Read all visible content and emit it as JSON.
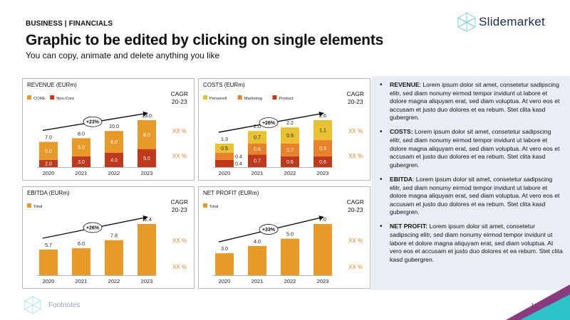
{
  "header": {
    "kicker": "BUSINESS | FINANCIALS",
    "title": "Graphic to be edited by clicking on single elements",
    "subtitle": "You can copy, animate and delete anything you like"
  },
  "logo": {
    "text": "Slidemarket"
  },
  "colors": {
    "orange": "#e89a28",
    "red": "#c0391b",
    "yellow": "#e8c233",
    "accent": "#e8821a"
  },
  "chart_data": [
    {
      "type": "bar",
      "stacked": true,
      "title": "REVENUE  (EURm)",
      "categories": [
        "2020",
        "2021",
        "2022",
        "2023"
      ],
      "series": [
        {
          "name": "Non-Core",
          "color": "#c0391b",
          "values": [
            2.0,
            3.0,
            4.0,
            5.0
          ]
        },
        {
          "name": "CORE",
          "color": "#e89a28",
          "values": [
            5.0,
            5.0,
            6.0,
            8.0
          ]
        }
      ],
      "totals": [
        7.0,
        8.0,
        10.0,
        13.0
      ],
      "legend_order": [
        "CORE",
        "Non-Core"
      ],
      "arrow_label": "+23%",
      "cagr_label": "CAGR",
      "cagr_period": "20-23",
      "cagr_values": [
        "XX %",
        "XX %"
      ],
      "ylim": [
        0,
        13
      ]
    },
    {
      "type": "bar",
      "stacked": true,
      "title": "COSTS (EURm)",
      "categories": [
        "2020",
        "2021",
        "2022",
        "2023"
      ],
      "series": [
        {
          "name": "Product",
          "color": "#c0391b",
          "values": [
            0.4,
            0.7,
            0.6,
            0.6
          ]
        },
        {
          "name": "Marketing",
          "color": "#e8822a",
          "values": [
            0.4,
            0.6,
            0.7,
            0.9
          ]
        },
        {
          "name": "Personell",
          "color": "#e8c233",
          "values": [
            0.5,
            0.7,
            0.9,
            1.1
          ]
        }
      ],
      "totals": [
        1.3,
        2.0,
        2.2,
        2.6
      ],
      "legend_order": [
        "Personell",
        "Marketing",
        "Product"
      ],
      "arrow_label": "+26%",
      "cagr_label": "CAGR",
      "cagr_period": "20-23",
      "cagr_values": [
        "XX %",
        "XX %"
      ],
      "ylim": [
        0,
        2.6
      ]
    },
    {
      "type": "bar",
      "stacked": false,
      "title": "EBITDA (EURm)",
      "categories": [
        "2020",
        "2021",
        "2022",
        "2023"
      ],
      "series": [
        {
          "name": "Total",
          "color": "#e89a28",
          "values": [
            5.7,
            6.0,
            7.8,
            11.4
          ]
        }
      ],
      "totals": [
        5.7,
        6.0,
        7.8,
        11.4
      ],
      "legend_order": [
        "Total"
      ],
      "arrow_label": "+26%",
      "cagr_label": "CAGR",
      "cagr_period": "20-23",
      "cagr_values": [
        "XX %",
        "XX %"
      ],
      "ylim": [
        0,
        11.4
      ]
    },
    {
      "type": "bar",
      "stacked": false,
      "title": "NET PROFIT (EURm)",
      "categories": [
        "2020",
        "2021",
        "2022",
        "2023"
      ],
      "series": [
        {
          "name": "Total",
          "color": "#e89a28",
          "values": [
            3.0,
            4.0,
            5.0,
            7.0
          ]
        }
      ],
      "totals": [
        3.0,
        4.0,
        5.0,
        7.0
      ],
      "legend_order": [
        "Total"
      ],
      "arrow_label": "+33%",
      "cagr_label": "CAGR",
      "cagr_period": "20-23",
      "cagr_values": [
        "XX %",
        "XX %"
      ],
      "ylim": [
        0,
        7.0
      ]
    }
  ],
  "bullets": [
    {
      "label": "REVENUE",
      "text": ": Lorem ipsum dolor sit amet, consetetur sadipscing elitr, sed diam nonumy eirmod tempor invidunt ut labore et dolore magna aliquyam erat, sed diam voluptua. At vero eos et accusam et justo duo dolores et ea rebum. Stet clita kasd gubergren."
    },
    {
      "label": "COSTS:",
      "text": " Lorem ipsum dolor sit amet, consetetur sadipscing elitr, sed diam nonumy eirmod tempor invidunt ut labore et dolore magna aliquyam erat, sed diam voluptua. At vero eos et accusam et justo duo dolores et ea rebum. Stet clita kasd gubergren."
    },
    {
      "label": "EBITDA",
      "text": ": Lorem ipsum dolor sit amet, consetetur sadipscing elitr, sed diam nonumy eirmod tempor invidunt ut labore et dolore magna aliquyam erat, sed diam voluptua. At vero eos et accusam et justo duo dolores et ea rebum. Stet clita kasd gubergren."
    },
    {
      "label": "NET PROFIT:",
      "text": " Lorem ipsum dolor sit amet, consetetur sadipscing elitr, sed diam nonumy eirmod tempor invidunt ut labore et dolore magna aliquyam erat, sed diam voluptua. At vero eos et accusam et justo duo dolores et ea rebum. Stet clita kasd gubergren."
    }
  ],
  "footer": {
    "footnotes": "Footnotes",
    "page_number": "1"
  }
}
